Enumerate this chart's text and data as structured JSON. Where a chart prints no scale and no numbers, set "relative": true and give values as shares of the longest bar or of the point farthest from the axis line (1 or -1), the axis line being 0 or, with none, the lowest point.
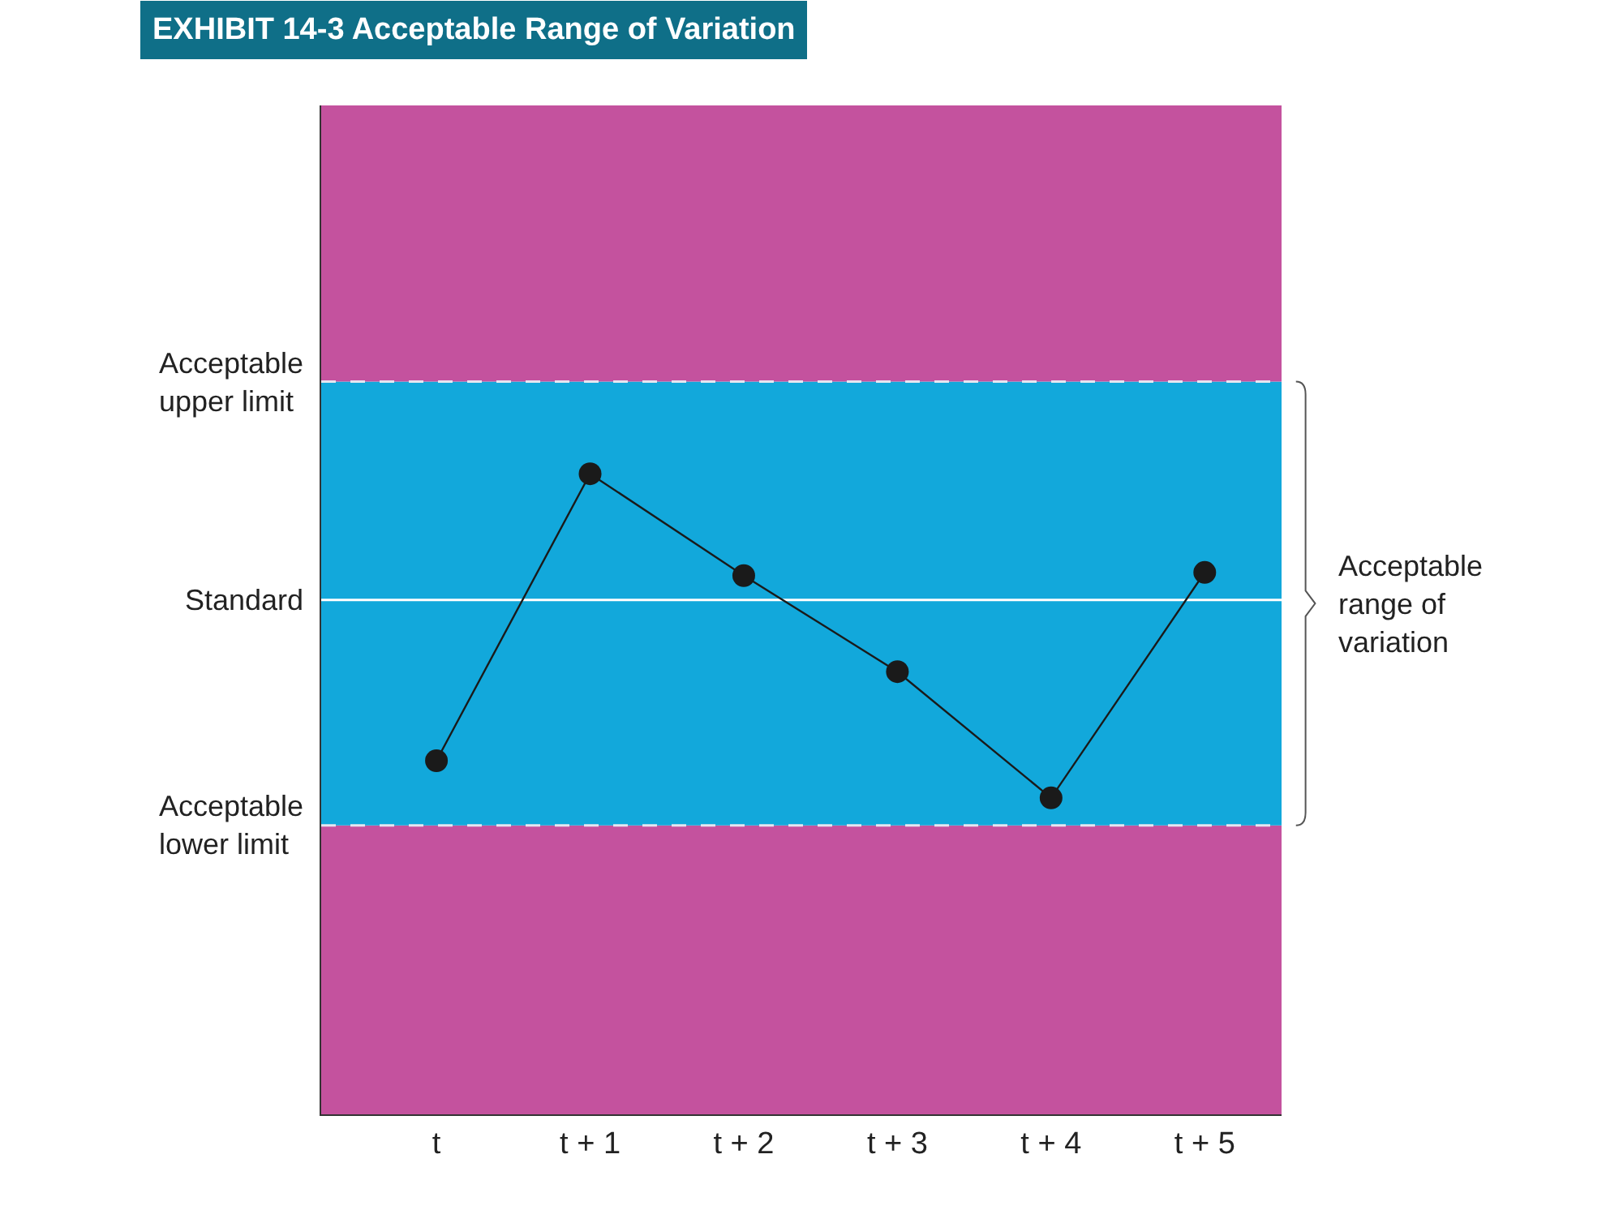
{
  "chart_data": {
    "type": "line",
    "title": "EXHIBIT 14-3 Acceptable Range of Variation",
    "categories": [
      "t",
      "t + 1",
      "t + 2",
      "t + 3",
      "t + 4",
      "t + 5"
    ],
    "relative": true,
    "series": [
      {
        "color": "#1a1a1a",
        "values": [
          0.552,
          1,
          0.841,
          0.691,
          0.494,
          0.846
        ]
      }
    ],
    "marker": "circle",
    "line_style": "solid",
    "grid": false,
    "legend": false,
    "ref_lines": [
      {
        "axis": "y",
        "value": 1.144,
        "label": "Acceptable upper limit",
        "color": "#e6e6f0",
        "line_style": "dashed"
      },
      {
        "axis": "y",
        "value": 0.803,
        "label": "Standard",
        "color": "#ffffff",
        "line_style": "solid"
      },
      {
        "axis": "y",
        "value": 0.451,
        "label": "Acceptable lower limit",
        "color": "#e6e6f0",
        "line_style": "dashed"
      }
    ],
    "bands": [
      {
        "axis": "y",
        "from": 0,
        "to": 0.451,
        "color": "#c4529e"
      },
      {
        "axis": "y",
        "from": 0.451,
        "to": 1.144,
        "color": "#12a8db",
        "label": "Acceptable range of variation"
      },
      {
        "axis": "y",
        "from": 1.144,
        "to": 1.575,
        "color": "#c4529e"
      }
    ]
  }
}
